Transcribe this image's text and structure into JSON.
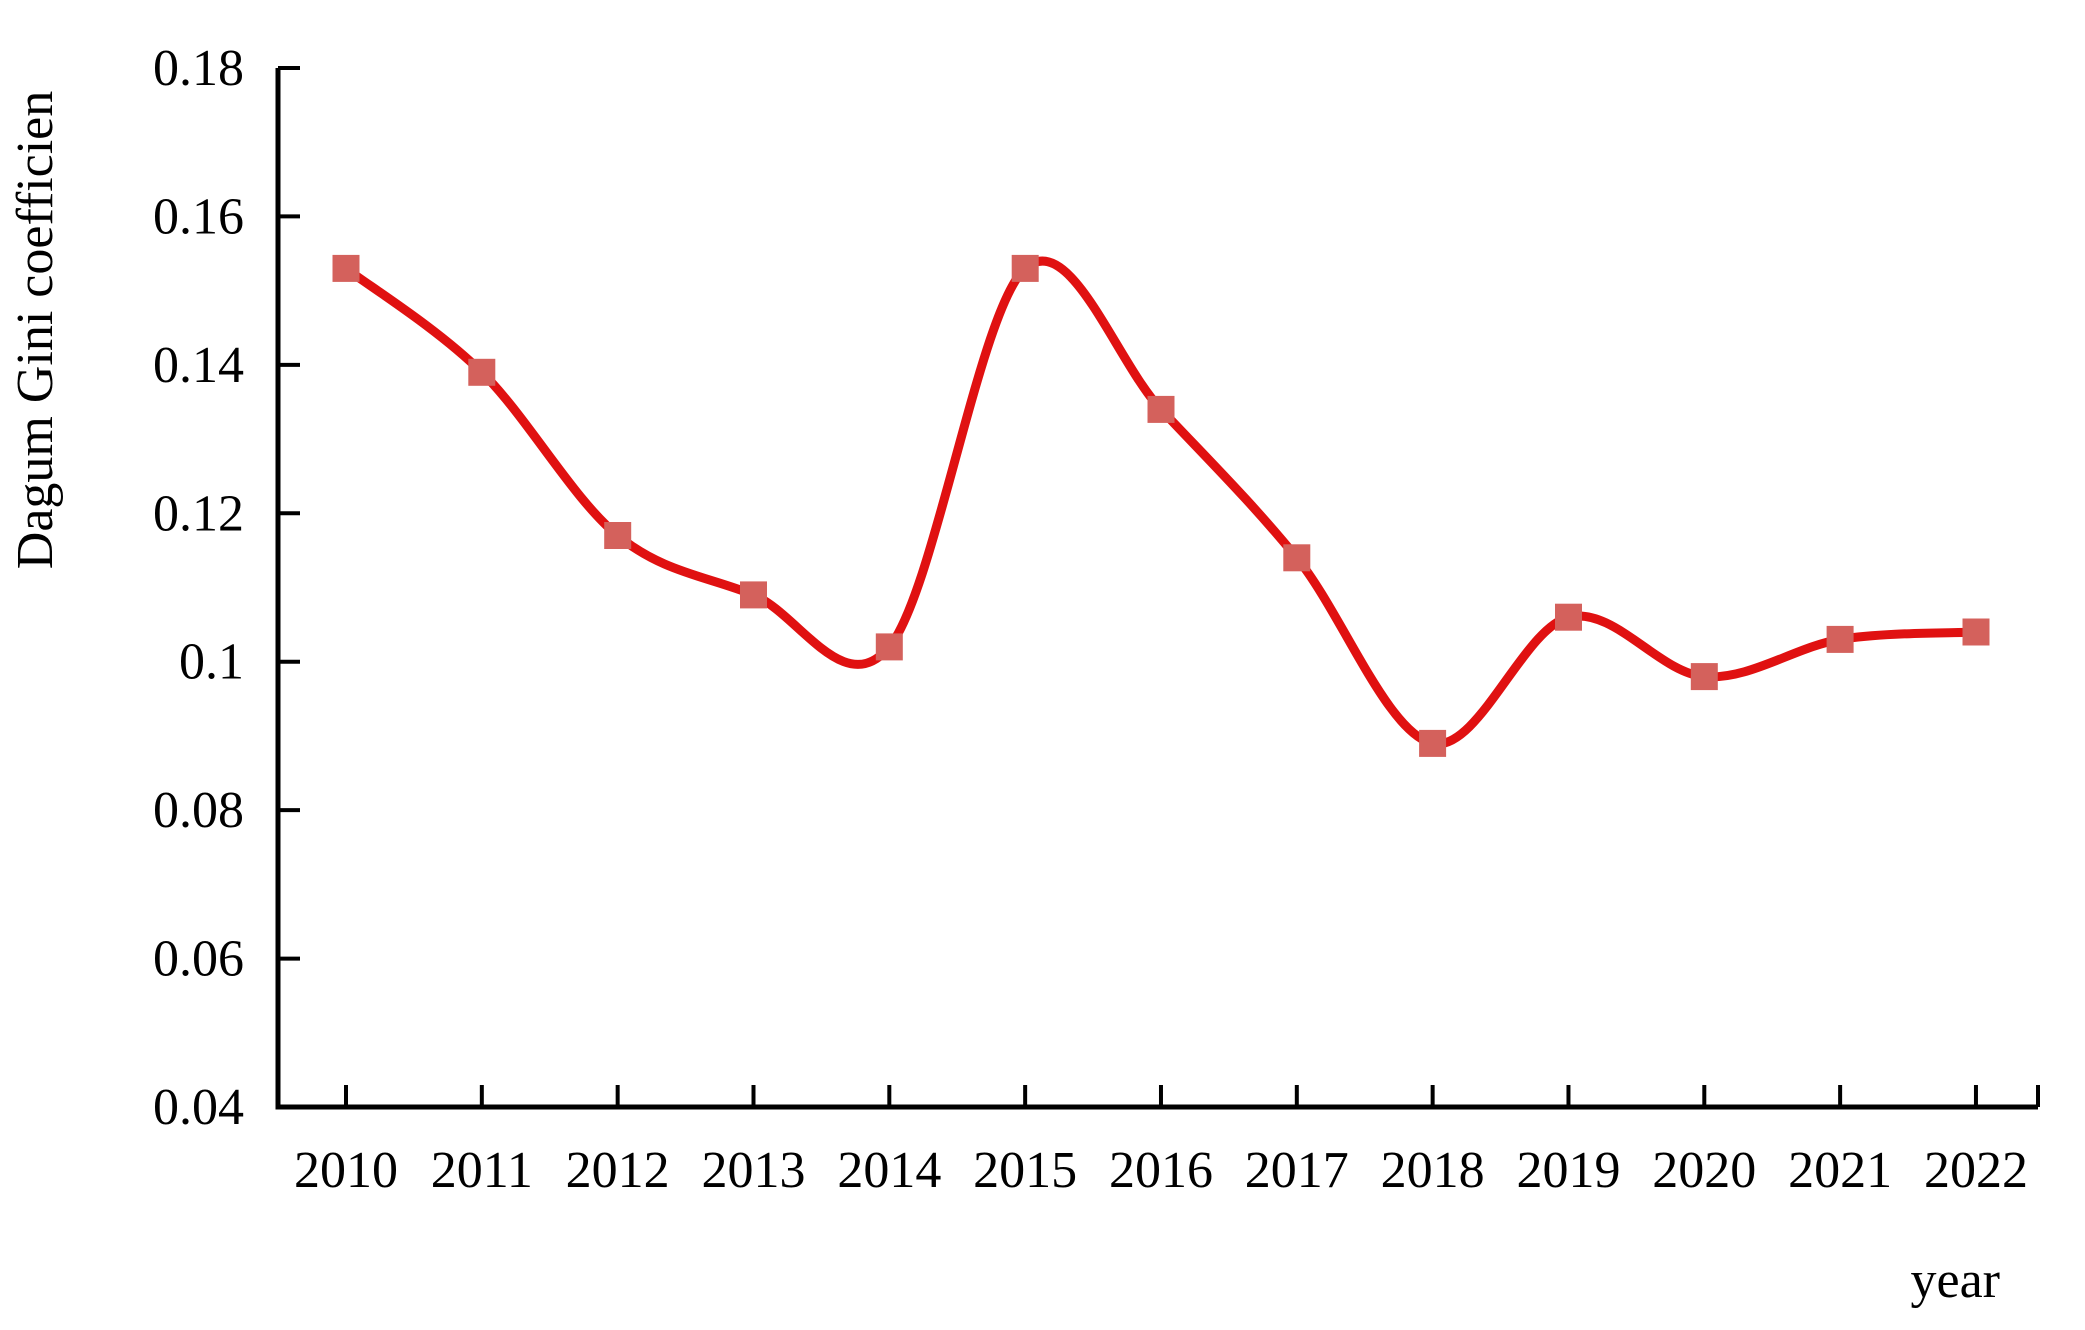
{
  "figure": {
    "background": "#ffffff"
  },
  "chart_data": {
    "type": "line",
    "title": "",
    "x": [
      "2010",
      "2011",
      "2012",
      "2013",
      "2014",
      "2015",
      "2016",
      "2017",
      "2018",
      "2019",
      "2020",
      "2021",
      "2022"
    ],
    "series": [
      {
        "name": "Dagum Gini coefficient",
        "values": [
          0.153,
          0.139,
          0.117,
          0.109,
          0.102,
          0.153,
          0.134,
          0.114,
          0.089,
          0.106,
          0.098,
          0.103,
          0.104
        ]
      }
    ],
    "xlabel": "year",
    "ylabel": "Dagum Gini coefficien",
    "ylim": [
      0.04,
      0.18
    ],
    "ytick_step": 0.02,
    "yticks": [
      "0.04",
      "0.06",
      "0.08",
      "0.1",
      "0.12",
      "0.14",
      "0.16",
      "0.18"
    ],
    "grid": false,
    "legend_position": "none",
    "line_style": "smooth",
    "marker_shape": "square",
    "line_color": "#e01111",
    "marker_color": "#d4615c",
    "axis_color": "#000000",
    "text_color": "#000000"
  }
}
